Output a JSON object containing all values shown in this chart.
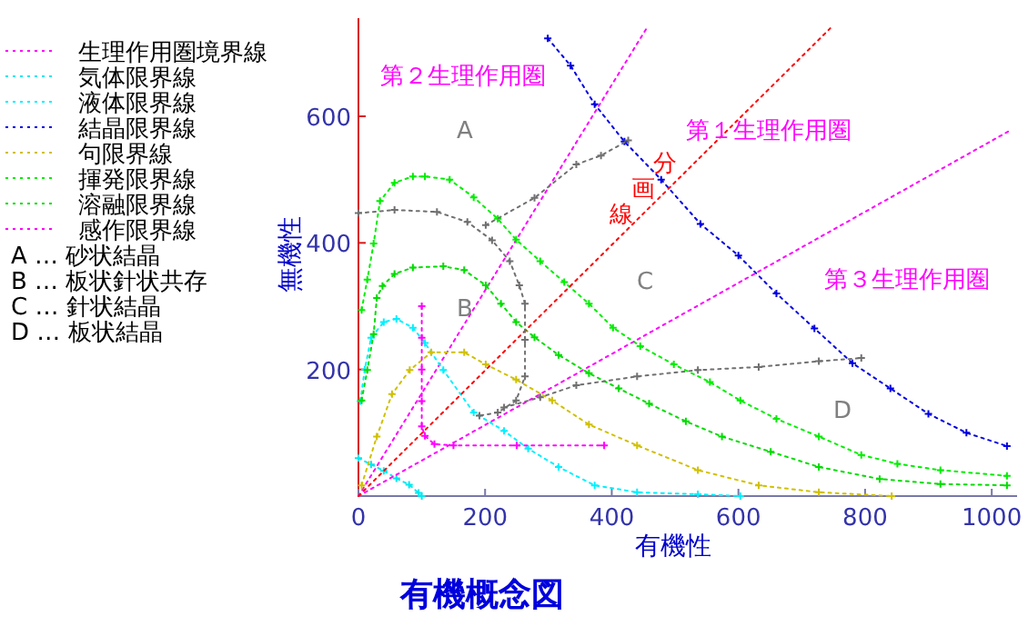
{
  "chart_data": {
    "type": "line",
    "title": "有機概念図",
    "xlabel": "有機性",
    "ylabel": "無機性",
    "xlim": [
      0,
      1040
    ],
    "ylim": [
      0,
      755
    ],
    "xticks": [
      0,
      200,
      400,
      600,
      800,
      1000
    ],
    "yticks": [
      200,
      400,
      600
    ],
    "legend": "left",
    "grid": false,
    "series": [
      {
        "name": "生理作用圏境界線",
        "color": "#ff00ff",
        "line_style": "dotted",
        "x": [
          0,
          455
        ],
        "values": [
          0,
          739
        ]
      },
      {
        "name": "気体限界線",
        "color": "#00e8f0",
        "line_style": "dotted",
        "marker": "cross",
        "x": [
          0,
          20,
          40,
          60,
          80,
          95,
          100
        ],
        "values": [
          60,
          50,
          40,
          28,
          18,
          5,
          0
        ]
      },
      {
        "name": "液体限界線",
        "color": "#00f0ff",
        "line_style": "dotted",
        "marker": "cross",
        "x": [
          3,
          10,
          20,
          40,
          60,
          86,
          105,
          134,
          182,
          230,
          268,
          316,
          373,
          440,
          536,
          603
        ],
        "values": [
          150,
          200,
          250,
          275,
          280,
          266,
          242,
          199,
          132,
          103,
          75,
          46,
          17,
          6,
          3,
          0
        ]
      },
      {
        "name": "結晶限界線",
        "color": "#0000e0",
        "line_style": "dotted",
        "marker": "cross",
        "x": [
          299,
          335,
          373,
          420,
          478,
          540,
          600,
          660,
          720,
          780,
          840,
          900,
          960,
          1024
        ],
        "values": [
          723,
          680,
          619,
          560,
          500,
          430,
          380,
          320,
          265,
          210,
          170,
          130,
          100,
          79
        ]
      },
      {
        "name": "句限界線",
        "color": "#d0c000",
        "line_style": "dotted",
        "marker": "cross",
        "x": [
          5,
          29,
          53,
          81,
          115,
          167,
          201,
          249,
          306,
          364,
          440,
          536,
          632,
          727,
          842
        ],
        "values": [
          17,
          94,
          161,
          199,
          227,
          227,
          208,
          184,
          151,
          113,
          80,
          41,
          17,
          6,
          0
        ]
      },
      {
        "name": "揮発限界線",
        "color": "#00ee00",
        "line_style": "dotted",
        "marker": "cross",
        "x": [
          5,
          14,
          24,
          34,
          57,
          86,
          105,
          144,
          182,
          220,
          249,
          287,
          325,
          364,
          402,
          445,
          498,
          555,
          603,
          660,
          727,
          794,
          851,
          919,
          1024
        ],
        "values": [
          294,
          342,
          399,
          466,
          495,
          505,
          505,
          500,
          472,
          438,
          405,
          371,
          338,
          304,
          266,
          237,
          208,
          180,
          151,
          122,
          94,
          65,
          51,
          41,
          32
        ]
      },
      {
        "name": "溶融限界線",
        "color": "#00dd00",
        "line_style": "dotted",
        "marker": "cross",
        "x": [
          5,
          14,
          24,
          29,
          38,
          57,
          86,
          134,
          167,
          201,
          225,
          249,
          278,
          316,
          364,
          411,
          459,
          517,
          574,
          651,
          727,
          823,
          919,
          1024
        ],
        "values": [
          151,
          199,
          256,
          313,
          332,
          351,
          361,
          363,
          357,
          333,
          304,
          275,
          251,
          223,
          194,
          170,
          146,
          118,
          94,
          70,
          46,
          27,
          19,
          17
        ]
      },
      {
        "name": "感作限界線",
        "color": "#ff00ff",
        "line_style": "dotted",
        "marker": "cross",
        "x": [
          100,
          100,
          100,
          100,
          100,
          105,
          120,
          150,
          250,
          388
        ],
        "values": [
          300,
          250,
          200,
          150,
          110,
          95,
          82,
          80,
          80,
          80
        ]
      },
      {
        "color": "#ff00ff",
        "line_style": "dotted",
        "x": [
          0,
          1026
        ],
        "values": [
          0,
          576
        ]
      },
      {
        "color": "#ff0000",
        "line_style": "dotted",
        "x": [
          0,
          745
        ],
        "values": [
          0,
          739
        ]
      },
      {
        "color": "#707070",
        "line_style": "dotted",
        "marker": "cross",
        "x": [
          0,
          57,
          124,
          172,
          211,
          239,
          254,
          263,
          263,
          263,
          249,
          220,
          191
        ],
        "values": [
          447,
          452,
          449,
          433,
          404,
          371,
          333,
          304,
          247,
          189,
          151,
          132,
          127
        ]
      },
      {
        "color": "#707070",
        "line_style": "dotted",
        "marker": "cross",
        "x": [
          230,
          287,
          344,
          440,
          536,
          632,
          727,
          794
        ],
        "values": [
          140,
          156,
          175,
          189,
          199,
          204,
          213,
          218
        ]
      },
      {
        "color": "#707070",
        "line_style": "dotted",
        "marker": "cross",
        "x": [
          201,
          278,
          344,
          383,
          426
        ],
        "values": [
          428,
          471,
          524,
          538,
          562
        ]
      }
    ],
    "annotations": [
      "第２生理作用圏",
      "第１生理作用圏",
      "第３生理作用圏",
      "分画線",
      "A",
      "B",
      "C",
      "D",
      "A … 砂状結晶",
      "B … 板状針状共存",
      "C … 針状結晶",
      "D … 板状結晶"
    ]
  }
}
